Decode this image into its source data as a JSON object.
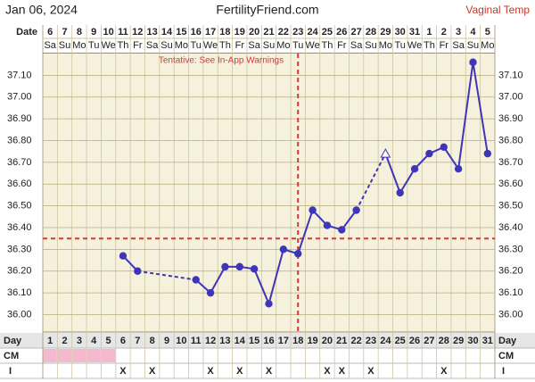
{
  "header": {
    "date": "Jan 06, 2024",
    "site": "FertilityFriend.com",
    "temp_method": "Vaginal Temp"
  },
  "chart_data": {
    "type": "line",
    "annotation": "Tentative: See In-App Warnings",
    "row_labels": {
      "date": "Date",
      "day": "Day",
      "cm": "CM",
      "intercourse": "I"
    },
    "dates": [
      6,
      7,
      8,
      9,
      10,
      11,
      12,
      13,
      14,
      15,
      16,
      17,
      18,
      19,
      20,
      21,
      22,
      23,
      24,
      25,
      26,
      27,
      28,
      29,
      30,
      31,
      1,
      2,
      3,
      4,
      5
    ],
    "weekdays": [
      "Sa",
      "Su",
      "Mo",
      "Tu",
      "We",
      "Th",
      "Fr",
      "Sa",
      "Su",
      "Mo",
      "Tu",
      "We",
      "Th",
      "Fr",
      "Sa",
      "Su",
      "Mo",
      "Tu",
      "We",
      "Th",
      "Fr",
      "Sa",
      "Su",
      "Mo",
      "Tu",
      "We",
      "Th",
      "Fr",
      "Sa",
      "Su",
      "Mo"
    ],
    "categories": [
      1,
      2,
      3,
      4,
      5,
      6,
      7,
      8,
      9,
      10,
      11,
      12,
      13,
      14,
      15,
      16,
      17,
      18,
      19,
      20,
      21,
      22,
      23,
      24,
      25,
      26,
      27,
      28,
      29,
      30,
      31
    ],
    "values": [
      null,
      null,
      null,
      null,
      null,
      36.27,
      36.2,
      null,
      null,
      null,
      36.16,
      36.1,
      36.22,
      36.22,
      36.21,
      36.05,
      36.3,
      36.28,
      36.48,
      36.41,
      36.39,
      36.48,
      null,
      36.74,
      36.56,
      36.67,
      36.74,
      36.77,
      36.67,
      37.16,
      36.74
    ],
    "color": "#3f35b8",
    "excluded_days": [
      24
    ],
    "coverline": 36.35,
    "ovulation_day": 18,
    "marker_line_color": "#d33a3a",
    "period_days": [
      1,
      2,
      3,
      4,
      5
    ],
    "period_color": "#f4b8cf",
    "intercourse": [
      null,
      null,
      null,
      null,
      null,
      "X",
      null,
      "X",
      null,
      null,
      null,
      "X",
      null,
      "X",
      null,
      "X",
      null,
      null,
      null,
      "X",
      "X",
      null,
      "X",
      null,
      null,
      null,
      null,
      "X",
      null,
      null,
      null
    ],
    "ylim": [
      35.92,
      37.2
    ],
    "yticks": [
      {
        "value": 36.0,
        "label": "36.00"
      },
      {
        "value": 36.1,
        "label": "36.10"
      },
      {
        "value": 36.2,
        "label": "36.20"
      },
      {
        "value": 36.3,
        "label": "36.30"
      },
      {
        "value": 36.4,
        "label": "36.40"
      },
      {
        "value": 36.5,
        "label": "36.50"
      },
      {
        "value": 36.6,
        "label": "36.60"
      },
      {
        "value": 36.7,
        "label": "36.70"
      },
      {
        "value": 36.8,
        "label": "36.80"
      },
      {
        "value": 36.9,
        "label": "36.90"
      },
      {
        "value": 37.0,
        "label": "37.00"
      },
      {
        "value": 37.1,
        "label": "37.10"
      }
    ],
    "grid": true
  }
}
